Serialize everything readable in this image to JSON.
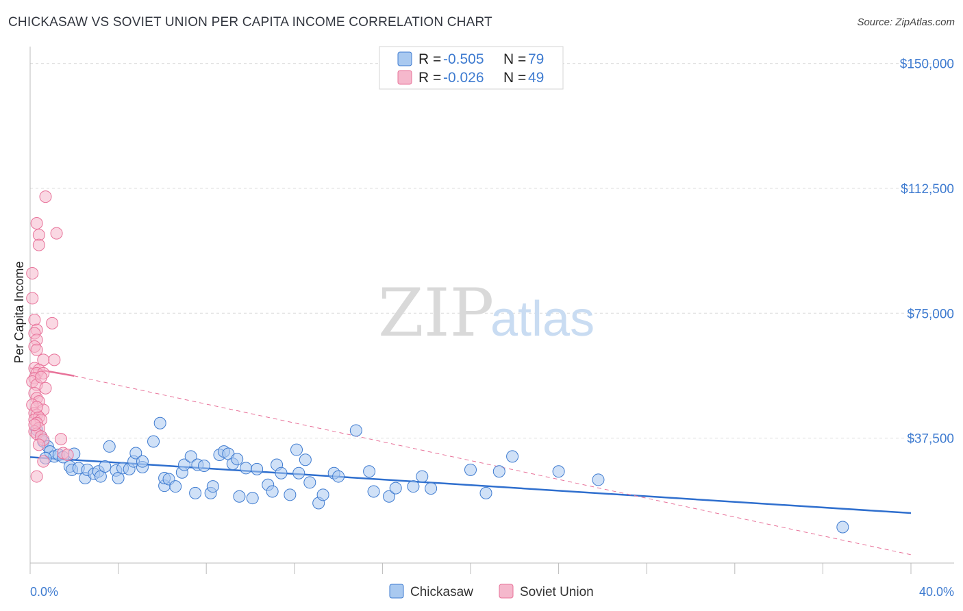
{
  "title": "CHICKASAW VS SOVIET UNION PER CAPITA INCOME CORRELATION CHART",
  "source": "Source: ZipAtlas.com",
  "colors": {
    "blue": "#3e7bd0",
    "blue_fill": "#a9c9f0",
    "pink": "#e8739a",
    "pink_fill": "#f5b8cc"
  },
  "legend": [
    {
      "r_label": "R = ",
      "r_value": "-0.505",
      "n_label": "N = ",
      "n_value": "79"
    },
    {
      "r_label": "R = ",
      "r_value": "-0.026",
      "n_label": "N = ",
      "n_value": "49"
    }
  ],
  "watermark": {
    "zip": "ZIP",
    "atlas": "atlas"
  },
  "chart_data": {
    "type": "scatter",
    "xlabel": "",
    "ylabel": "Per Capita Income",
    "xlim": [
      0,
      40
    ],
    "ylim": [
      0,
      153000
    ],
    "x_tick_labels": [
      "0.0%",
      "40.0%"
    ],
    "y_ticks": [
      37500,
      75000,
      112500,
      150000
    ],
    "y_tick_labels": [
      "$37,500",
      "$75,000",
      "$112,500",
      "$150,000"
    ],
    "series": [
      {
        "name": "Chickasaw",
        "color": "#3e7bd0",
        "points": [
          [
            0.3,
            40000
          ],
          [
            0.5,
            38000
          ],
          [
            0.6,
            36500
          ],
          [
            0.8,
            35000
          ],
          [
            0.9,
            33500
          ],
          [
            1.1,
            32000
          ],
          [
            1.3,
            32500
          ],
          [
            1.5,
            31800
          ],
          [
            1.8,
            29000
          ],
          [
            1.9,
            28000
          ],
          [
            2.2,
            28500
          ],
          [
            2.5,
            25500
          ],
          [
            2.6,
            28000
          ],
          [
            2.9,
            26800
          ],
          [
            3.1,
            27500
          ],
          [
            3.2,
            26000
          ],
          [
            3.6,
            35000
          ],
          [
            3.9,
            27800
          ],
          [
            4.0,
            25500
          ],
          [
            4.2,
            28500
          ],
          [
            4.5,
            28200
          ],
          [
            4.7,
            30500
          ],
          [
            4.8,
            33000
          ],
          [
            5.1,
            28800
          ],
          [
            5.1,
            30500
          ],
          [
            5.6,
            36500
          ],
          [
            5.9,
            42000
          ],
          [
            6.1,
            23200
          ],
          [
            6.1,
            25500
          ],
          [
            6.3,
            25200
          ],
          [
            6.6,
            23000
          ],
          [
            6.9,
            27200
          ],
          [
            7.0,
            29500
          ],
          [
            7.3,
            32000
          ],
          [
            7.5,
            21000
          ],
          [
            7.6,
            29500
          ],
          [
            7.9,
            29200
          ],
          [
            8.2,
            21000
          ],
          [
            8.3,
            23000
          ],
          [
            8.6,
            32500
          ],
          [
            8.8,
            33500
          ],
          [
            9.0,
            32800
          ],
          [
            9.2,
            29800
          ],
          [
            9.5,
            20000
          ],
          [
            9.8,
            28500
          ],
          [
            10.1,
            19500
          ],
          [
            10.3,
            28200
          ],
          [
            10.8,
            23500
          ],
          [
            11.0,
            21500
          ],
          [
            11.2,
            29500
          ],
          [
            11.4,
            27000
          ],
          [
            11.8,
            20500
          ],
          [
            12.1,
            34000
          ],
          [
            12.2,
            27000
          ],
          [
            12.5,
            31000
          ],
          [
            12.7,
            24200
          ],
          [
            13.1,
            18000
          ],
          [
            13.3,
            20500
          ],
          [
            13.8,
            27000
          ],
          [
            14.0,
            26000
          ],
          [
            14.8,
            39800
          ],
          [
            15.4,
            27500
          ],
          [
            15.6,
            21500
          ],
          [
            16.3,
            20000
          ],
          [
            16.6,
            22500
          ],
          [
            17.4,
            23000
          ],
          [
            17.8,
            26000
          ],
          [
            18.2,
            22400
          ],
          [
            20.0,
            28000
          ],
          [
            20.7,
            21000
          ],
          [
            21.3,
            27500
          ],
          [
            21.9,
            32000
          ],
          [
            24.0,
            27500
          ],
          [
            25.8,
            25000
          ],
          [
            36.9,
            10800
          ],
          [
            0.7,
            31500
          ],
          [
            2.0,
            32800
          ],
          [
            3.4,
            29000
          ],
          [
            9.4,
            31200
          ]
        ]
      },
      {
        "name": "Soviet Union",
        "color": "#e8739a",
        "points": [
          [
            0.7,
            110000
          ],
          [
            0.3,
            102000
          ],
          [
            1.2,
            99000
          ],
          [
            0.4,
            98500
          ],
          [
            0.4,
            95500
          ],
          [
            0.1,
            87000
          ],
          [
            0.1,
            79500
          ],
          [
            0.2,
            73000
          ],
          [
            1.0,
            72000
          ],
          [
            0.3,
            70000
          ],
          [
            0.2,
            69000
          ],
          [
            0.3,
            67000
          ],
          [
            0.2,
            65000
          ],
          [
            0.3,
            64000
          ],
          [
            0.6,
            61000
          ],
          [
            1.1,
            61000
          ],
          [
            0.2,
            58500
          ],
          [
            0.4,
            58000
          ],
          [
            0.3,
            57000
          ],
          [
            0.6,
            57000
          ],
          [
            0.2,
            55500
          ],
          [
            0.1,
            54500
          ],
          [
            0.3,
            53500
          ],
          [
            0.7,
            52500
          ],
          [
            0.2,
            51000
          ],
          [
            0.3,
            49500
          ],
          [
            0.4,
            48500
          ],
          [
            0.1,
            47500
          ],
          [
            0.6,
            46000
          ],
          [
            0.2,
            45000
          ],
          [
            0.3,
            44500
          ],
          [
            0.4,
            43800
          ],
          [
            0.2,
            43000
          ],
          [
            0.5,
            43000
          ],
          [
            0.3,
            42000
          ],
          [
            0.4,
            40500
          ],
          [
            0.2,
            39500
          ],
          [
            0.3,
            38800
          ],
          [
            0.5,
            38000
          ],
          [
            0.6,
            37000
          ],
          [
            1.4,
            37200
          ],
          [
            1.5,
            33000
          ],
          [
            1.7,
            32500
          ],
          [
            0.6,
            30500
          ],
          [
            0.3,
            26000
          ],
          [
            0.4,
            35500
          ],
          [
            0.2,
            41500
          ],
          [
            0.5,
            55800
          ],
          [
            0.3,
            46800
          ]
        ]
      }
    ],
    "trend_lines": [
      {
        "series": "Chickasaw",
        "x": [
          0,
          40
        ],
        "y": [
          31800,
          15000
        ],
        "style": "solid"
      },
      {
        "series": "Soviet Union",
        "x": [
          0,
          2
        ],
        "y": [
          58500,
          56200
        ],
        "style": "solid"
      },
      {
        "series": "Soviet Union",
        "x": [
          2,
          40
        ],
        "y": [
          56200,
          2500
        ],
        "style": "dashed"
      }
    ]
  },
  "bottom_legend": [
    "Chickasaw",
    "Soviet Union"
  ]
}
